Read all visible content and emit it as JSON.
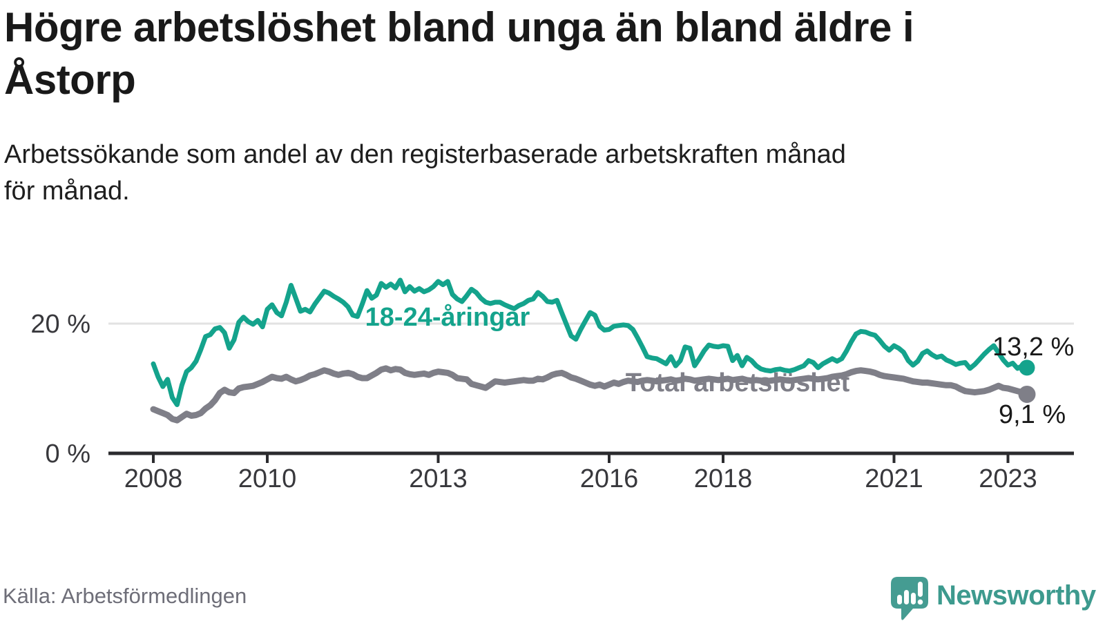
{
  "header": {
    "title": "Högre arbetslöshet bland unga än bland äldre i\nÅstorp",
    "subtitle": "Arbetssökande som andel av den registerbaserade arbetskraften månad\nför månad."
  },
  "chart_data": {
    "type": "line",
    "unit": "%",
    "x_axis": {
      "start_year": 2008,
      "start_month": 1,
      "frequency": "monthly",
      "tick_years": [
        2008,
        2010,
        2013,
        2016,
        2018,
        2021,
        2023
      ]
    },
    "y_axis": {
      "range": [
        0,
        28
      ],
      "grid_values": [
        20
      ],
      "ticks": [
        {
          "value": 0,
          "label": "0 %"
        },
        {
          "value": 20,
          "label": "20 %"
        }
      ]
    },
    "legend_position": "inline-labels",
    "series": [
      {
        "name": "18-24-åringar",
        "color": "#14a38c",
        "end_value": 13.2,
        "end_label": "13,2 %",
        "values": [
          13.8,
          11.8,
          10.3,
          11.4,
          8.6,
          7.5,
          10.5,
          12.6,
          13.2,
          14.2,
          16.0,
          18.0,
          18.3,
          19.2,
          19.4,
          18.6,
          16.2,
          17.5,
          20.2,
          21.0,
          20.3,
          19.9,
          20.5,
          19.5,
          22.2,
          22.9,
          21.7,
          21.2,
          23.3,
          25.9,
          23.9,
          21.9,
          22.2,
          21.8,
          23.0,
          24.0,
          25.0,
          24.7,
          24.2,
          23.8,
          23.3,
          22.6,
          21.3,
          21.1,
          23.0,
          25.1,
          23.9,
          24.4,
          26.2,
          25.6,
          26.1,
          25.5,
          26.7,
          24.9,
          25.7,
          25.0,
          25.4,
          24.9,
          25.2,
          25.7,
          26.5,
          26.0,
          26.5,
          24.5,
          23.8,
          23.4,
          24.3,
          25.3,
          24.8,
          23.9,
          23.3,
          23.1,
          23.3,
          23.3,
          22.9,
          22.6,
          22.3,
          22.8,
          23.1,
          23.6,
          23.8,
          24.8,
          24.2,
          23.4,
          23.3,
          23.6,
          21.7,
          19.9,
          18.1,
          17.6,
          19.1,
          20.4,
          21.7,
          21.3,
          19.6,
          19.0,
          19.1,
          19.6,
          19.7,
          19.8,
          19.7,
          19.1,
          17.8,
          16.4,
          14.9,
          14.7,
          14.6,
          14.2,
          13.8,
          14.9,
          13.5,
          14.3,
          16.4,
          16.2,
          13.5,
          14.6,
          15.8,
          16.7,
          16.5,
          16.4,
          16.6,
          16.5,
          14.3,
          15.1,
          13.5,
          14.8,
          14.3,
          13.5,
          13.0,
          12.8,
          12.7,
          12.9,
          13.0,
          12.8,
          12.7,
          12.9,
          13.2,
          13.5,
          14.3,
          14.0,
          13.2,
          13.8,
          14.2,
          14.6,
          14.2,
          14.6,
          15.8,
          17.2,
          18.4,
          18.8,
          18.7,
          18.4,
          18.2,
          17.4,
          16.5,
          15.9,
          16.6,
          16.2,
          15.6,
          14.3,
          13.6,
          14.2,
          15.4,
          15.8,
          15.2,
          14.8,
          15.0,
          14.4,
          14.1,
          13.7,
          13.9,
          14.0,
          13.1,
          13.7,
          14.5,
          15.3,
          16.0,
          16.6,
          15.5,
          14.4,
          13.6,
          13.9,
          13.1,
          13.5,
          13.2
        ]
      },
      {
        "name": "Total arbetslöshet",
        "color": "#7f7f88",
        "end_value": 9.1,
        "end_label": "9,1 %",
        "values": [
          6.8,
          6.5,
          6.2,
          5.9,
          5.3,
          5.1,
          5.6,
          6.1,
          5.8,
          5.9,
          6.2,
          6.9,
          7.4,
          8.2,
          9.3,
          9.8,
          9.4,
          9.3,
          10.0,
          10.2,
          10.3,
          10.4,
          10.7,
          11.0,
          11.4,
          11.8,
          11.6,
          11.5,
          11.8,
          11.4,
          11.1,
          11.3,
          11.6,
          12.0,
          12.2,
          12.5,
          12.8,
          12.6,
          12.3,
          12.1,
          12.3,
          12.4,
          12.2,
          11.8,
          11.6,
          11.6,
          12.0,
          12.4,
          12.9,
          13.1,
          12.8,
          13.0,
          12.9,
          12.4,
          12.2,
          12.1,
          12.2,
          12.3,
          12.1,
          12.4,
          12.6,
          12.5,
          12.4,
          12.1,
          11.6,
          11.5,
          11.4,
          10.7,
          10.5,
          10.3,
          10.1,
          10.6,
          11.1,
          11.0,
          10.9,
          11.0,
          11.1,
          11.2,
          11.3,
          11.2,
          11.2,
          11.5,
          11.4,
          11.7,
          12.1,
          12.3,
          12.4,
          12.1,
          11.7,
          11.5,
          11.2,
          10.9,
          10.6,
          10.4,
          10.6,
          10.3,
          10.6,
          10.9,
          10.7,
          11.0,
          11.2,
          11.1,
          11.0,
          11.2,
          11.3,
          11.2,
          11.1,
          11.2,
          11.3,
          11.4,
          11.2,
          11.3,
          11.5,
          11.4,
          11.2,
          11.3,
          11.4,
          11.5,
          11.4,
          11.3,
          11.4,
          11.5,
          11.3,
          11.4,
          11.5,
          11.3,
          11.2,
          11.3,
          11.2,
          11.1,
          11.2,
          11.3,
          11.4,
          11.3,
          11.2,
          11.3,
          11.4,
          11.5,
          11.6,
          11.5,
          11.4,
          11.5,
          11.6,
          11.8,
          11.9,
          12.0,
          12.2,
          12.5,
          12.7,
          12.8,
          12.7,
          12.6,
          12.4,
          12.1,
          11.9,
          11.8,
          11.7,
          11.6,
          11.5,
          11.3,
          11.1,
          11.0,
          10.9,
          10.9,
          10.8,
          10.7,
          10.6,
          10.5,
          10.5,
          10.3,
          9.9,
          9.6,
          9.5,
          9.4,
          9.5,
          9.6,
          9.8,
          10.1,
          10.4,
          10.1,
          10.0,
          9.8,
          9.6,
          9.4,
          9.1
        ]
      }
    ]
  },
  "footer": {
    "source": "Källa: Arbetsförmedlingen",
    "brand": "Newsworthy"
  },
  "colors": {
    "accent_teal": "#14a38c",
    "line_gray": "#7f7f88",
    "axis": "#2b2b2e",
    "grid": "#e2e2e2",
    "text_dark": "#191919",
    "tick_text": "#38383c",
    "muted_text": "#6e6e78",
    "logo_teal": "#459c92"
  }
}
